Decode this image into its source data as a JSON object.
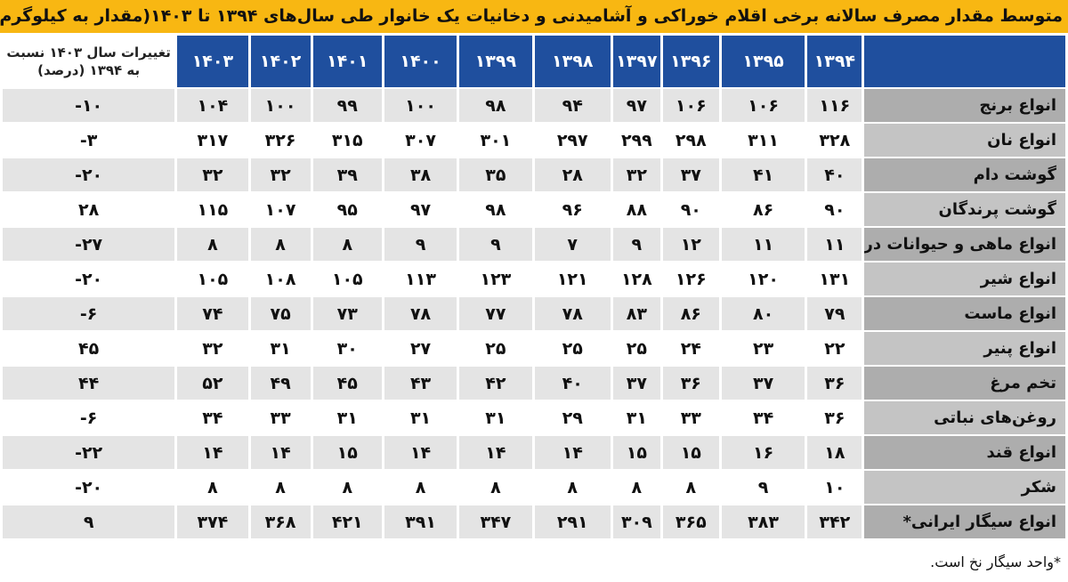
{
  "title": "متوسط مقدار مصرف سالانه برخی اقلام خوراکی و آشامیدنی و دخانیات یک خانوار طی سال‌های ۱۳۹۴ تا ۱۴۰۳(مقدار به کیلوگرم)",
  "table": {
    "columns": {
      "years": [
        "۱۳۹۴",
        "۱۳۹۵",
        "۱۳۹۶",
        "۱۳۹۷",
        "۱۳۹۸",
        "۱۳۹۹",
        "۱۴۰۰",
        "۱۴۰۱",
        "۱۴۰۲",
        "۱۴۰۳"
      ],
      "change": "تغییرات سال ۱۴۰۳ نسبت به ۱۳۹۴ (درصد)"
    },
    "rows": [
      {
        "label": "انواع برنج",
        "values": [
          "۱۱۶",
          "۱۰۶",
          "۱۰۶",
          "۹۷",
          "۹۴",
          "۹۸",
          "۱۰۰",
          "۹۹",
          "۱۰۰",
          "۱۰۴"
        ],
        "change": "-۱۰"
      },
      {
        "label": "انواع نان",
        "values": [
          "۳۲۸",
          "۳۱۱",
          "۲۹۸",
          "۲۹۹",
          "۲۹۷",
          "۳۰۱",
          "۳۰۷",
          "۳۱۵",
          "۳۲۶",
          "۳۱۷"
        ],
        "change": "-۳"
      },
      {
        "label": "گوشت دام",
        "values": [
          "۴۰",
          "۴۱",
          "۳۷",
          "۳۲",
          "۲۸",
          "۳۵",
          "۳۸",
          "۳۹",
          "۳۲",
          "۳۲"
        ],
        "change": "-۲۰"
      },
      {
        "label": "گوشت پرندگان",
        "values": [
          "۹۰",
          "۸۶",
          "۹۰",
          "۸۸",
          "۹۶",
          "۹۸",
          "۹۷",
          "۹۵",
          "۱۰۷",
          "۱۱۵"
        ],
        "change": "۲۸"
      },
      {
        "label": "انواع ماهی و حیوانات دریایی",
        "values": [
          "۱۱",
          "۱۱",
          "۱۲",
          "۹",
          "۷",
          "۹",
          "۹",
          "۸",
          "۸",
          "۸"
        ],
        "change": "-۲۷"
      },
      {
        "label": "انواع شیر",
        "values": [
          "۱۳۱",
          "۱۲۰",
          "۱۲۶",
          "۱۲۸",
          "۱۲۱",
          "۱۲۳",
          "۱۱۳",
          "۱۰۵",
          "۱۰۸",
          "۱۰۵"
        ],
        "change": "-۲۰"
      },
      {
        "label": "انواع ماست",
        "values": [
          "۷۹",
          "۸۰",
          "۸۶",
          "۸۳",
          "۷۸",
          "۷۷",
          "۷۸",
          "۷۳",
          "۷۵",
          "۷۴"
        ],
        "change": "-۶"
      },
      {
        "label": "انواع پنیر",
        "values": [
          "۲۲",
          "۲۳",
          "۲۴",
          "۲۵",
          "۲۵",
          "۲۵",
          "۲۷",
          "۳۰",
          "۳۱",
          "۳۲"
        ],
        "change": "۴۵"
      },
      {
        "label": "تخم مرغ",
        "values": [
          "۳۶",
          "۳۷",
          "۳۶",
          "۳۷",
          "۴۰",
          "۴۲",
          "۴۳",
          "۴۵",
          "۴۹",
          "۵۲"
        ],
        "change": "۴۴"
      },
      {
        "label": "روغن‌های نباتی",
        "values": [
          "۳۶",
          "۳۴",
          "۳۳",
          "۳۱",
          "۲۹",
          "۳۱",
          "۳۱",
          "۳۱",
          "۳۳",
          "۳۴"
        ],
        "change": "-۶"
      },
      {
        "label": "انواع قند",
        "values": [
          "۱۸",
          "۱۶",
          "۱۵",
          "۱۵",
          "۱۴",
          "۱۴",
          "۱۴",
          "۱۵",
          "۱۴",
          "۱۴"
        ],
        "change": "-۲۲"
      },
      {
        "label": "شکر",
        "values": [
          "۱۰",
          "۹",
          "۸",
          "۸",
          "۸",
          "۸",
          "۸",
          "۸",
          "۸",
          "۸"
        ],
        "change": "-۲۰"
      },
      {
        "label": "انواع سیگار ایرانی*",
        "values": [
          "۳۴۲",
          "۳۸۳",
          "۳۶۵",
          "۳۰۹",
          "۲۹۱",
          "۳۴۷",
          "۳۹۱",
          "۴۲۱",
          "۳۶۸",
          "۳۷۴"
        ],
        "change": "۹"
      }
    ]
  },
  "footnote": "*واحد سیگار نخ است."
}
